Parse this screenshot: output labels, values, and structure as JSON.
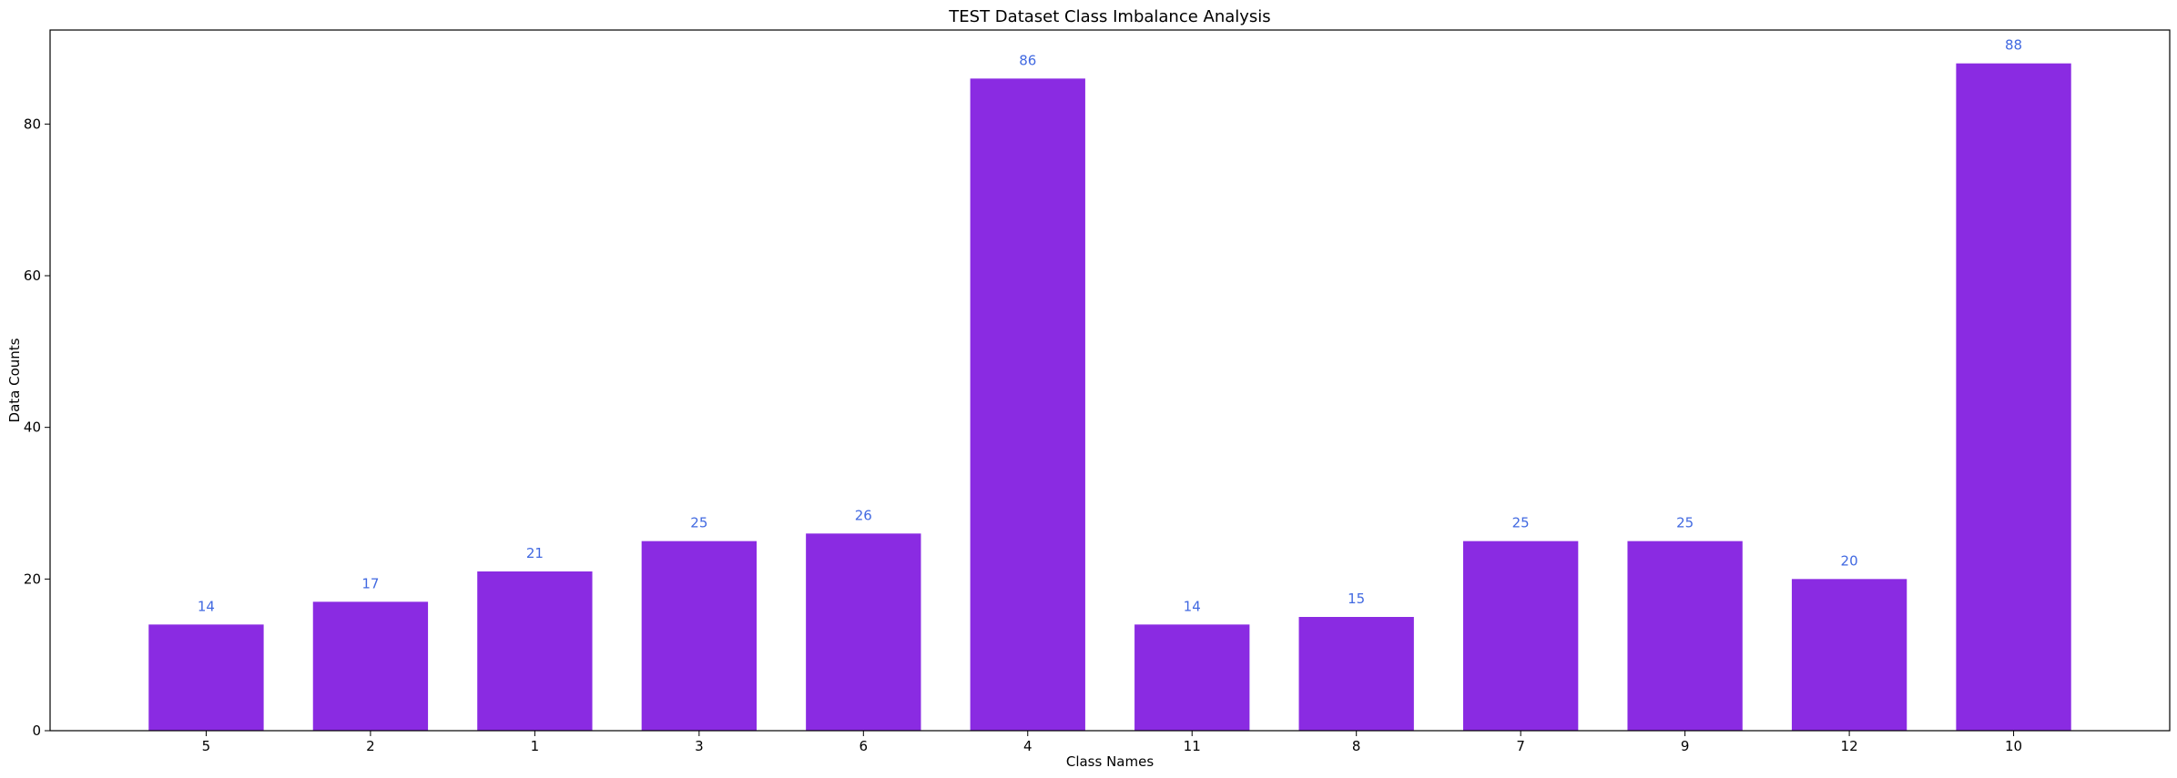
{
  "chart_data": {
    "type": "bar",
    "title": "TEST Dataset Class Imbalance Analysis",
    "xlabel": "Class Names",
    "ylabel": "Data Counts",
    "categories": [
      "5",
      "2",
      "1",
      "3",
      "6",
      "4",
      "11",
      "8",
      "7",
      "9",
      "12",
      "10"
    ],
    "values": [
      14,
      17,
      21,
      25,
      26,
      86,
      14,
      15,
      25,
      25,
      20,
      88
    ],
    "ylim": [
      0,
      92.4
    ],
    "yticks": [
      0,
      20,
      40,
      60,
      80
    ],
    "grid": false,
    "legend": "none",
    "bar_color": "#8a2be2",
    "label_color": "#4169e1"
  }
}
